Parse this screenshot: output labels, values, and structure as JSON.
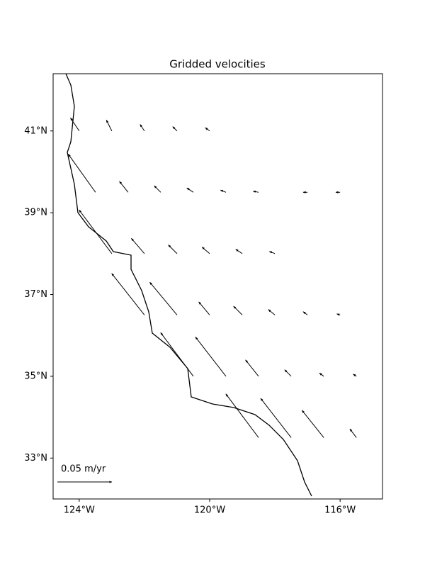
{
  "chart_data": {
    "type": "quiver",
    "title": "Gridded velocities",
    "xlim": [
      -124.8,
      -114.7
    ],
    "ylim": [
      32.0,
      42.4
    ],
    "xticks": [
      {
        "value": -124,
        "label": "124°W"
      },
      {
        "value": -120,
        "label": "120°W"
      },
      {
        "value": -116,
        "label": "116°W"
      }
    ],
    "yticks": [
      {
        "value": 33,
        "label": "33°N"
      },
      {
        "value": 35,
        "label": "35°N"
      },
      {
        "value": 37,
        "label": "37°N"
      },
      {
        "value": 39,
        "label": "39°N"
      },
      {
        "value": 41,
        "label": "41°N"
      }
    ],
    "color": "#000000",
    "key": {
      "value": 0.05,
      "label": "0.05 m/yr"
    },
    "lon": [
      -124,
      -123,
      -122,
      -121,
      -120,
      -123.5,
      -122.5,
      -121.5,
      -120.5,
      -119.5,
      -118.5,
      -117,
      -116,
      -123,
      -122,
      -121,
      -120,
      -119,
      -118,
      -122,
      -121,
      -120,
      -119,
      -118,
      -117,
      -116,
      -120.5,
      -119.5,
      -118.5,
      -117.5,
      -116.5,
      -115.5,
      -118.5,
      -117.5,
      -116.5,
      -115.5
    ],
    "lat": [
      41,
      41,
      41,
      41,
      41,
      39.5,
      39.5,
      39.5,
      39.5,
      39.5,
      39.5,
      39.5,
      39.5,
      38,
      38,
      38,
      38,
      38,
      38,
      36.5,
      36.5,
      36.5,
      36.5,
      36.5,
      36.5,
      36.5,
      35,
      35,
      35,
      35,
      35,
      35,
      33.5,
      33.5,
      33.5,
      33.5
    ],
    "ve": [
      -0.008,
      -0.005,
      -0.004,
      -0.004,
      -0.004,
      -0.025,
      -0.008,
      -0.006,
      -0.006,
      -0.005,
      -0.005,
      -0.004,
      -0.004,
      -0.03,
      -0.012,
      -0.008,
      -0.007,
      -0.006,
      -0.005,
      -0.03,
      -0.025,
      -0.01,
      -0.008,
      -0.006,
      -0.004,
      -0.003,
      -0.03,
      -0.028,
      -0.012,
      -0.006,
      -0.004,
      -0.003,
      -0.03,
      -0.028,
      -0.02,
      -0.006
    ],
    "vn": [
      0.012,
      0.01,
      0.006,
      0.004,
      0.003,
      0.035,
      0.01,
      0.006,
      0.004,
      0.002,
      0.001,
      0,
      0,
      0.04,
      0.014,
      0.008,
      0.006,
      0.004,
      0.002,
      0.038,
      0.03,
      0.012,
      0.008,
      0.005,
      0.003,
      0.001,
      0.04,
      0.036,
      0.015,
      0.006,
      0.003,
      0.002,
      0.04,
      0.036,
      0.025,
      0.008
    ]
  }
}
